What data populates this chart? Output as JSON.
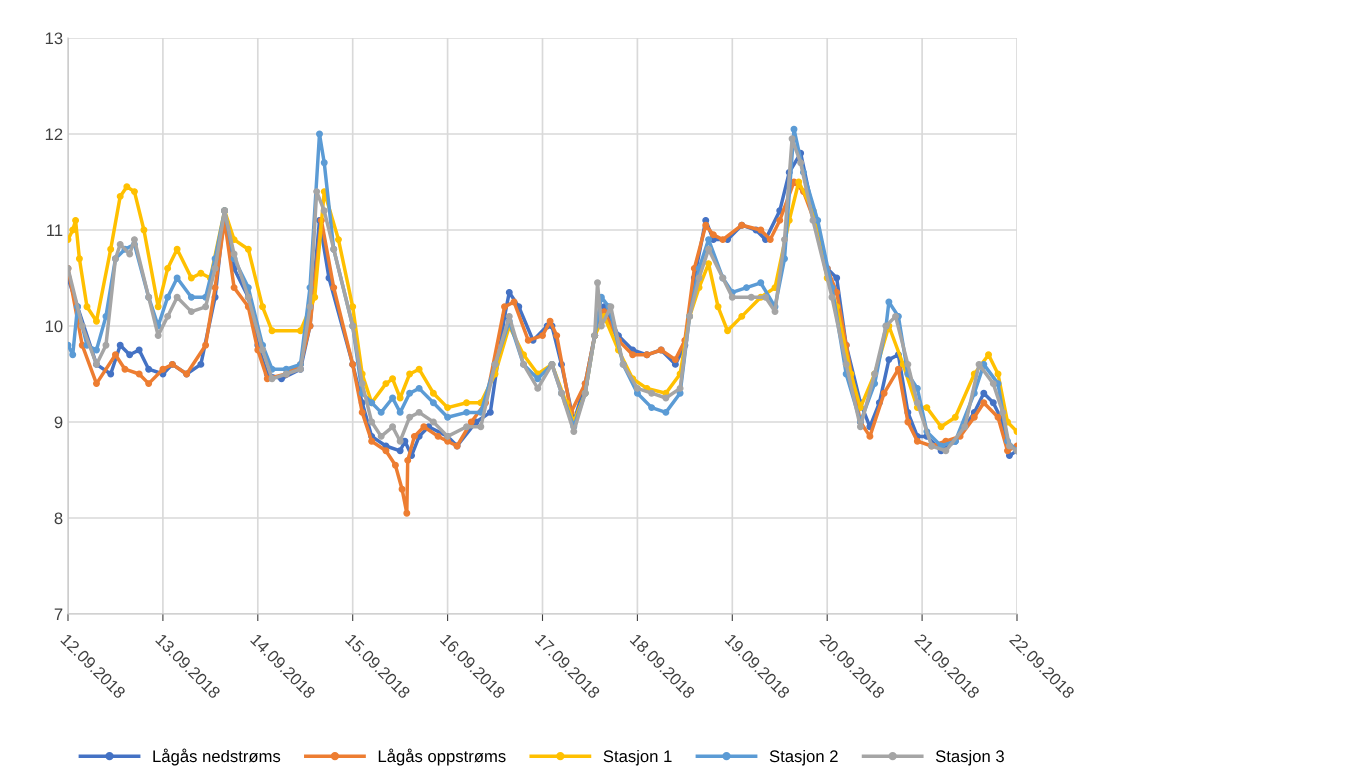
{
  "chart_data": {
    "type": "line",
    "xlim": [
      "2018-09-12",
      "2018-09-22"
    ],
    "ylim": [
      7,
      13
    ],
    "yticks": [
      7,
      8,
      9,
      10,
      11,
      12,
      13
    ],
    "xticks": [
      {
        "value": "2018-09-12",
        "label": "12.09.2018"
      },
      {
        "value": "2018-09-13",
        "label": "13.09.2018"
      },
      {
        "value": "2018-09-14",
        "label": "14.09.2018"
      },
      {
        "value": "2018-09-15",
        "label": "15.09.2018"
      },
      {
        "value": "2018-09-16",
        "label": "16.09.2018"
      },
      {
        "value": "2018-09-17",
        "label": "17.09.2018"
      },
      {
        "value": "2018-09-18",
        "label": "18.09.2018"
      },
      {
        "value": "2018-09-19",
        "label": "19.09.2018"
      },
      {
        "value": "2018-09-20",
        "label": "20.09.2018"
      },
      {
        "value": "2018-09-21",
        "label": "21.09.2018"
      },
      {
        "value": "2018-09-22",
        "label": "22.09.2018"
      }
    ],
    "grid": true,
    "legend": "bottom",
    "marker": "circle",
    "line_style": "solid",
    "series": [
      {
        "name": "Lågås nedstrøms",
        "color": "#4472c4",
        "x": [
          "2018-09-12T00:00",
          "2018-09-12T02:24",
          "2018-09-12T07:12",
          "2018-09-12T10:48",
          "2018-09-12T13:12",
          "2018-09-12T15:36",
          "2018-09-12T18:00",
          "2018-09-12T20:24",
          "2018-09-13T00:00",
          "2018-09-13T02:24",
          "2018-09-13T06:00",
          "2018-09-13T09:36",
          "2018-09-13T13:12",
          "2018-09-13T15:36",
          "2018-09-13T18:00",
          "2018-09-13T21:36",
          "2018-09-14T00:00",
          "2018-09-14T02:24",
          "2018-09-14T06:00",
          "2018-09-14T10:48",
          "2018-09-14T13:12",
          "2018-09-14T15:36",
          "2018-09-14T18:00",
          "2018-09-15T00:00",
          "2018-09-15T02:24",
          "2018-09-15T04:48",
          "2018-09-15T08:24",
          "2018-09-15T12:00",
          "2018-09-15T13:12",
          "2018-09-15T14:53",
          "2018-09-15T16:48",
          "2018-09-15T19:12",
          "2018-09-16T00:00",
          "2018-09-16T02:24",
          "2018-09-16T07:12",
          "2018-09-16T10:48",
          "2018-09-16T14:24",
          "2018-09-16T15:36",
          "2018-09-16T18:00",
          "2018-09-16T21:36",
          "2018-09-17T01:12",
          "2018-09-17T02:24",
          "2018-09-17T04:48",
          "2018-09-17T07:55",
          "2018-09-17T10:48",
          "2018-09-17T13:12",
          "2018-09-17T15:36",
          "2018-09-17T19:12",
          "2018-09-17T22:48",
          "2018-09-18T02:24",
          "2018-09-18T06:00",
          "2018-09-18T09:36",
          "2018-09-18T12:00",
          "2018-09-18T14:24",
          "2018-09-18T17:17",
          "2018-09-18T19:12",
          "2018-09-18T22:48",
          "2018-09-19T02:24",
          "2018-09-19T06:00",
          "2018-09-19T08:24",
          "2018-09-19T12:00",
          "2018-09-19T14:24",
          "2018-09-19T17:17",
          "2018-09-19T20:24",
          "2018-09-20T00:00",
          "2018-09-20T02:24",
          "2018-09-20T04:48",
          "2018-09-20T08:24",
          "2018-09-20T10:48",
          "2018-09-20T13:12",
          "2018-09-20T15:36",
          "2018-09-20T18:00",
          "2018-09-20T20:24",
          "2018-09-20T22:48",
          "2018-09-21T01:12",
          "2018-09-21T04:48",
          "2018-09-21T08:24",
          "2018-09-21T13:12",
          "2018-09-21T15:36",
          "2018-09-21T18:00",
          "2018-09-21T20:24",
          "2018-09-21T22:05",
          "2018-09-22T00:00"
        ],
        "values": [
          10.5,
          10.2,
          9.6,
          9.5,
          9.8,
          9.7,
          9.75,
          9.55,
          9.5,
          9.6,
          9.5,
          9.6,
          10.3,
          11.2,
          10.6,
          10.3,
          9.8,
          9.5,
          9.45,
          9.55,
          10.0,
          11.1,
          10.5,
          9.6,
          9.2,
          8.85,
          8.75,
          8.7,
          8.8,
          8.65,
          8.85,
          8.95,
          8.85,
          8.75,
          9.0,
          9.1,
          10.1,
          10.35,
          10.2,
          9.85,
          10.0,
          10.0,
          9.6,
          9.0,
          9.4,
          9.9,
          10.2,
          9.9,
          9.75,
          9.7,
          9.75,
          9.6,
          9.8,
          10.5,
          11.1,
          10.9,
          10.9,
          11.05,
          11.0,
          10.9,
          11.2,
          11.6,
          11.8,
          11.2,
          10.6,
          10.5,
          9.8,
          9.2,
          8.95,
          9.2,
          9.65,
          9.7,
          9.1,
          8.85,
          8.85,
          8.7,
          8.8,
          9.1,
          9.3,
          9.2,
          9.0,
          8.65,
          8.7
        ]
      },
      {
        "name": "Lågås oppstrøms",
        "color": "#ed7d31",
        "x": [
          "2018-09-12T00:00",
          "2018-09-12T03:36",
          "2018-09-12T07:12",
          "2018-09-12T12:00",
          "2018-09-12T14:24",
          "2018-09-12T18:00",
          "2018-09-12T20:24",
          "2018-09-13T00:00",
          "2018-09-13T02:24",
          "2018-09-13T06:00",
          "2018-09-13T10:48",
          "2018-09-13T13:12",
          "2018-09-13T15:36",
          "2018-09-13T18:00",
          "2018-09-13T21:36",
          "2018-09-14T00:00",
          "2018-09-14T02:24",
          "2018-09-14T07:12",
          "2018-09-14T10:48",
          "2018-09-14T13:12",
          "2018-09-14T16:05",
          "2018-09-14T19:12",
          "2018-09-15T00:00",
          "2018-09-15T02:24",
          "2018-09-15T04:48",
          "2018-09-15T08:24",
          "2018-09-15T10:48",
          "2018-09-15T12:29",
          "2018-09-15T13:41",
          "2018-09-15T13:55",
          "2018-09-15T15:36",
          "2018-09-15T18:00",
          "2018-09-15T21:36",
          "2018-09-16T00:00",
          "2018-09-16T02:24",
          "2018-09-16T06:00",
          "2018-09-16T09:36",
          "2018-09-16T14:24",
          "2018-09-16T16:48",
          "2018-09-16T20:24",
          "2018-09-17T00:00",
          "2018-09-17T01:55",
          "2018-09-17T03:36",
          "2018-09-17T07:12",
          "2018-09-17T10:48",
          "2018-09-17T13:12",
          "2018-09-17T15:36",
          "2018-09-17T19:12",
          "2018-09-17T22:48",
          "2018-09-18T02:24",
          "2018-09-18T06:00",
          "2018-09-18T09:36",
          "2018-09-18T12:00",
          "2018-09-18T14:24",
          "2018-09-18T17:17",
          "2018-09-18T19:12",
          "2018-09-18T21:36",
          "2018-09-19T02:24",
          "2018-09-19T07:12",
          "2018-09-19T09:36",
          "2018-09-19T12:00",
          "2018-09-19T15:36",
          "2018-09-19T18:00",
          "2018-09-19T21:36",
          "2018-09-20T00:00",
          "2018-09-20T02:24",
          "2018-09-20T04:48",
          "2018-09-20T08:24",
          "2018-09-20T10:48",
          "2018-09-20T14:24",
          "2018-09-20T18:00",
          "2018-09-20T20:24",
          "2018-09-20T22:48",
          "2018-09-21T02:24",
          "2018-09-21T06:00",
          "2018-09-21T09:36",
          "2018-09-21T13:12",
          "2018-09-21T15:36",
          "2018-09-21T19:12",
          "2018-09-21T21:36",
          "2018-09-22T00:00"
        ],
        "values": [
          10.6,
          9.8,
          9.4,
          9.7,
          9.55,
          9.5,
          9.4,
          9.55,
          9.6,
          9.5,
          9.8,
          10.4,
          11.1,
          10.4,
          10.2,
          9.75,
          9.45,
          9.5,
          9.6,
          10.0,
          11.1,
          10.4,
          9.6,
          9.1,
          8.8,
          8.7,
          8.55,
          8.3,
          8.05,
          8.6,
          8.85,
          8.95,
          8.85,
          8.8,
          8.75,
          9.0,
          9.2,
          10.2,
          10.25,
          9.85,
          9.9,
          10.05,
          9.9,
          9.1,
          9.4,
          9.9,
          10.15,
          9.85,
          9.7,
          9.7,
          9.75,
          9.65,
          9.85,
          10.6,
          11.05,
          10.95,
          10.9,
          11.05,
          11.0,
          10.9,
          11.1,
          11.5,
          11.4,
          11.0,
          10.6,
          10.35,
          9.8,
          9.0,
          8.85,
          9.3,
          9.55,
          9.0,
          8.8,
          8.75,
          8.8,
          8.85,
          9.05,
          9.2,
          9.05,
          8.7,
          8.75
        ]
      },
      {
        "name": "Stasjon 1",
        "color": "#ffc000",
        "x": [
          "2018-09-12T00:00",
          "2018-09-12T01:12",
          "2018-09-12T01:55",
          "2018-09-12T02:53",
          "2018-09-12T04:48",
          "2018-09-12T07:12",
          "2018-09-12T10:48",
          "2018-09-12T13:12",
          "2018-09-12T14:53",
          "2018-09-12T16:48",
          "2018-09-12T19:12",
          "2018-09-12T22:48",
          "2018-09-13T01:12",
          "2018-09-13T03:36",
          "2018-09-13T07:12",
          "2018-09-13T09:36",
          "2018-09-13T12:00",
          "2018-09-13T15:36",
          "2018-09-13T18:00",
          "2018-09-13T21:36",
          "2018-09-14T01:12",
          "2018-09-14T03:36",
          "2018-09-14T10:48",
          "2018-09-14T14:24",
          "2018-09-14T16:48",
          "2018-09-14T20:24",
          "2018-09-15T00:00",
          "2018-09-15T02:24",
          "2018-09-15T04:48",
          "2018-09-15T08:24",
          "2018-09-15T10:05",
          "2018-09-15T12:00",
          "2018-09-15T14:24",
          "2018-09-15T16:48",
          "2018-09-15T20:24",
          "2018-09-16T00:00",
          "2018-09-16T04:48",
          "2018-09-16T08:24",
          "2018-09-16T12:00",
          "2018-09-16T15:36",
          "2018-09-16T19:12",
          "2018-09-16T22:48",
          "2018-09-17T02:24",
          "2018-09-17T06:00",
          "2018-09-17T07:55",
          "2018-09-17T10:48",
          "2018-09-17T13:12",
          "2018-09-17T15:36",
          "2018-09-17T19:12",
          "2018-09-17T22:48",
          "2018-09-18T02:24",
          "2018-09-18T07:12",
          "2018-09-18T10:48",
          "2018-09-18T13:12",
          "2018-09-18T15:36",
          "2018-09-18T18:00",
          "2018-09-18T20:24",
          "2018-09-18T22:48",
          "2018-09-19T02:24",
          "2018-09-19T07:12",
          "2018-09-19T10:48",
          "2018-09-19T14:24",
          "2018-09-19T16:48",
          "2018-09-19T20:24",
          "2018-09-20T00:00",
          "2018-09-20T02:24",
          "2018-09-20T06:00",
          "2018-09-20T08:24",
          "2018-09-20T12:00",
          "2018-09-20T15:36",
          "2018-09-20T19:12",
          "2018-09-20T22:48",
          "2018-09-21T01:12",
          "2018-09-21T04:48",
          "2018-09-21T08:24",
          "2018-09-21T13:12",
          "2018-09-21T16:48",
          "2018-09-21T19:12",
          "2018-09-21T21:36",
          "2018-09-22T00:00"
        ],
        "values": [
          10.9,
          11.0,
          11.1,
          10.7,
          10.2,
          10.05,
          10.8,
          11.35,
          11.45,
          11.4,
          11.0,
          10.2,
          10.6,
          10.8,
          10.5,
          10.55,
          10.5,
          11.2,
          10.9,
          10.8,
          10.2,
          9.95,
          9.95,
          10.3,
          11.4,
          10.9,
          10.2,
          9.5,
          9.2,
          9.4,
          9.45,
          9.25,
          9.5,
          9.55,
          9.3,
          9.15,
          9.2,
          9.2,
          9.5,
          10.0,
          9.7,
          9.5,
          9.6,
          9.2,
          9.0,
          9.3,
          9.9,
          10.1,
          9.75,
          9.45,
          9.35,
          9.3,
          9.5,
          10.1,
          10.4,
          10.65,
          10.2,
          9.95,
          10.1,
          10.3,
          10.4,
          11.1,
          11.5,
          11.2,
          10.5,
          10.2,
          9.5,
          9.15,
          9.5,
          10.0,
          9.6,
          9.15,
          9.15,
          8.95,
          9.05,
          9.5,
          9.7,
          9.5,
          9.0,
          8.9
        ]
      },
      {
        "name": "Stasjon 2",
        "color": "#5b9bd5",
        "x": [
          "2018-09-12T00:00",
          "2018-09-12T01:12",
          "2018-09-12T02:24",
          "2018-09-12T04:48",
          "2018-09-12T07:12",
          "2018-09-12T09:36",
          "2018-09-12T12:00",
          "2018-09-12T14:24",
          "2018-09-12T16:48",
          "2018-09-12T20:24",
          "2018-09-12T22:48",
          "2018-09-13T01:12",
          "2018-09-13T03:36",
          "2018-09-13T07:12",
          "2018-09-13T10:48",
          "2018-09-13T13:12",
          "2018-09-13T15:36",
          "2018-09-13T18:00",
          "2018-09-13T21:36",
          "2018-09-14T01:12",
          "2018-09-14T03:36",
          "2018-09-14T07:12",
          "2018-09-14T10:48",
          "2018-09-14T13:12",
          "2018-09-14T15:36",
          "2018-09-14T16:48",
          "2018-09-14T19:12",
          "2018-09-15T00:00",
          "2018-09-15T02:24",
          "2018-09-15T04:48",
          "2018-09-15T07:12",
          "2018-09-15T10:05",
          "2018-09-15T12:00",
          "2018-09-15T14:24",
          "2018-09-15T16:48",
          "2018-09-15T20:24",
          "2018-09-16T00:00",
          "2018-09-16T04:48",
          "2018-09-16T08:24",
          "2018-09-16T12:00",
          "2018-09-16T15:36",
          "2018-09-16T19:12",
          "2018-09-16T22:48",
          "2018-09-17T02:24",
          "2018-09-17T04:48",
          "2018-09-17T07:55",
          "2018-09-17T10:48",
          "2018-09-17T13:12",
          "2018-09-17T14:53",
          "2018-09-17T16:48",
          "2018-09-17T20:24",
          "2018-09-18T00:00",
          "2018-09-18T03:36",
          "2018-09-18T07:12",
          "2018-09-18T10:48",
          "2018-09-18T13:12",
          "2018-09-18T15:36",
          "2018-09-18T18:00",
          "2018-09-18T21:36",
          "2018-09-19T00:00",
          "2018-09-19T03:36",
          "2018-09-19T07:12",
          "2018-09-19T10:48",
          "2018-09-19T13:12",
          "2018-09-19T15:36",
          "2018-09-19T18:00",
          "2018-09-19T21:36",
          "2018-09-20T01:12",
          "2018-09-20T04:48",
          "2018-09-20T08:24",
          "2018-09-20T12:00",
          "2018-09-20T14:53",
          "2018-09-20T15:36",
          "2018-09-20T18:00",
          "2018-09-20T20:24",
          "2018-09-20T22:48",
          "2018-09-21T01:12",
          "2018-09-21T04:48",
          "2018-09-21T08:24",
          "2018-09-21T13:12",
          "2018-09-21T15:36",
          "2018-09-21T19:12",
          "2018-09-21T21:36",
          "2018-09-22T00:00"
        ],
        "values": [
          9.8,
          9.7,
          10.2,
          9.8,
          9.75,
          10.1,
          10.7,
          10.8,
          10.85,
          10.3,
          10.0,
          10.3,
          10.5,
          10.3,
          10.3,
          10.7,
          11.2,
          10.7,
          10.4,
          9.8,
          9.55,
          9.55,
          9.6,
          10.4,
          12.0,
          11.7,
          10.8,
          10.0,
          9.3,
          9.2,
          9.1,
          9.25,
          9.1,
          9.3,
          9.35,
          9.2,
          9.05,
          9.1,
          9.1,
          9.6,
          10.05,
          9.6,
          9.45,
          9.6,
          9.3,
          8.95,
          9.3,
          9.9,
          10.3,
          10.2,
          9.6,
          9.3,
          9.15,
          9.1,
          9.3,
          10.1,
          10.6,
          10.9,
          10.5,
          10.35,
          10.4,
          10.45,
          10.2,
          10.7,
          12.05,
          11.6,
          11.1,
          10.4,
          9.5,
          9.0,
          9.4,
          10.0,
          10.25,
          10.1,
          9.5,
          9.35,
          8.9,
          8.75,
          8.8,
          9.3,
          9.6,
          9.4,
          8.8,
          8.7
        ]
      },
      {
        "name": "Stasjon 3",
        "color": "#a5a5a5",
        "x": [
          "2018-09-12T00:00",
          "2018-09-12T03:36",
          "2018-09-12T07:12",
          "2018-09-12T09:36",
          "2018-09-12T12:00",
          "2018-09-12T13:12",
          "2018-09-12T15:36",
          "2018-09-12T16:48",
          "2018-09-12T20:24",
          "2018-09-12T22:48",
          "2018-09-13T01:12",
          "2018-09-13T03:36",
          "2018-09-13T07:12",
          "2018-09-13T10:48",
          "2018-09-13T13:12",
          "2018-09-13T15:36",
          "2018-09-13T18:00",
          "2018-09-13T21:36",
          "2018-09-14T01:12",
          "2018-09-14T03:36",
          "2018-09-14T07:12",
          "2018-09-14T10:48",
          "2018-09-14T13:12",
          "2018-09-14T14:53",
          "2018-09-14T16:48",
          "2018-09-14T19:12",
          "2018-09-15T00:00",
          "2018-09-15T02:24",
          "2018-09-15T04:48",
          "2018-09-15T07:12",
          "2018-09-15T10:05",
          "2018-09-15T12:00",
          "2018-09-15T14:24",
          "2018-09-15T16:48",
          "2018-09-15T20:24",
          "2018-09-16T00:00",
          "2018-09-16T04:48",
          "2018-09-16T08:24",
          "2018-09-16T12:00",
          "2018-09-16T15:36",
          "2018-09-16T19:12",
          "2018-09-16T22:48",
          "2018-09-17T02:24",
          "2018-09-17T04:48",
          "2018-09-17T07:55",
          "2018-09-17T10:48",
          "2018-09-17T13:12",
          "2018-09-17T13:55",
          "2018-09-17T14:53",
          "2018-09-17T17:17",
          "2018-09-17T20:24",
          "2018-09-18T00:00",
          "2018-09-18T03:36",
          "2018-09-18T07:12",
          "2018-09-18T10:48",
          "2018-09-18T13:12",
          "2018-09-18T15:36",
          "2018-09-18T18:00",
          "2018-09-18T21:36",
          "2018-09-19T00:00",
          "2018-09-19T04:48",
          "2018-09-19T08:24",
          "2018-09-19T10:48",
          "2018-09-19T13:12",
          "2018-09-19T15:07",
          "2018-09-19T17:17",
          "2018-09-19T20:24",
          "2018-09-20T01:12",
          "2018-09-20T04:48",
          "2018-09-20T08:24",
          "2018-09-20T12:00",
          "2018-09-20T14:53",
          "2018-09-20T17:17",
          "2018-09-20T20:24",
          "2018-09-20T22:48",
          "2018-09-21T02:24",
          "2018-09-21T06:00",
          "2018-09-21T10:48",
          "2018-09-21T14:24",
          "2018-09-21T18:00",
          "2018-09-21T20:24",
          "2018-09-21T22:05",
          "2018-09-22T00:00"
        ],
        "values": [
          10.6,
          10.0,
          9.6,
          9.8,
          10.7,
          10.85,
          10.75,
          10.9,
          10.3,
          9.9,
          10.1,
          10.3,
          10.15,
          10.2,
          10.6,
          11.2,
          10.75,
          10.3,
          9.75,
          9.45,
          9.5,
          9.55,
          10.2,
          11.4,
          11.2,
          10.8,
          10.0,
          9.4,
          9.0,
          8.85,
          8.95,
          8.8,
          9.05,
          9.1,
          9.0,
          8.85,
          8.95,
          8.95,
          9.6,
          10.1,
          9.6,
          9.35,
          9.6,
          9.3,
          8.9,
          9.3,
          9.9,
          10.45,
          10.0,
          10.2,
          9.6,
          9.35,
          9.3,
          9.25,
          9.35,
          10.1,
          10.5,
          10.8,
          10.5,
          10.3,
          10.3,
          10.3,
          10.15,
          10.9,
          11.95,
          11.7,
          11.1,
          10.3,
          9.6,
          8.95,
          9.5,
          10.0,
          10.1,
          9.6,
          9.2,
          8.75,
          8.7,
          8.95,
          9.6,
          9.4,
          9.1,
          8.75,
          8.7
        ]
      }
    ]
  }
}
